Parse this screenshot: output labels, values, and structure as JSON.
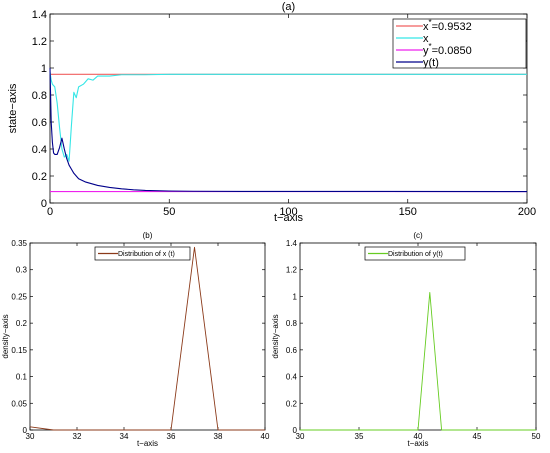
{
  "chart_data": [
    {
      "type": "line",
      "title": "(a)",
      "xlabel": "t−axis",
      "ylabel": "state−axis",
      "xlim": [
        0,
        200
      ],
      "ylim": [
        0,
        1.4
      ],
      "xticks": [
        "0",
        "50",
        "100",
        "150",
        "200"
      ],
      "yticks": [
        "0",
        "0.2",
        "0.4",
        "0.6",
        "0.8",
        "1",
        "1.2",
        "1.4"
      ],
      "legend_position": "top-right",
      "series": [
        {
          "name": "x*=0.9532",
          "label_base": "x",
          "label_sup": "*",
          "label_rest": "=0.9532",
          "color": "#f06060",
          "x": [
            0,
            200
          ],
          "y": [
            0.9532,
            0.9532
          ]
        },
        {
          "name": "x",
          "label_base": "x",
          "label_sup": "",
          "label_rest": "",
          "color": "#35e6e6",
          "x": [
            0,
            0.5,
            1,
            2,
            3,
            4,
            5,
            6,
            7,
            8,
            9,
            10,
            11,
            12,
            14,
            16,
            18,
            20,
            25,
            30,
            40,
            50,
            60,
            200
          ],
          "y": [
            0.97,
            0.91,
            0.88,
            0.86,
            0.74,
            0.56,
            0.4,
            0.34,
            0.36,
            0.31,
            0.58,
            0.82,
            0.78,
            0.86,
            0.88,
            0.92,
            0.91,
            0.94,
            0.94,
            0.95,
            0.95,
            0.953,
            0.953,
            0.953
          ]
        },
        {
          "name": "y*=0.0850",
          "label_base": "y",
          "label_sup": "*",
          "label_rest": "=0.0850",
          "color": "#ee22ee",
          "x": [
            0,
            200
          ],
          "y": [
            0.085,
            0.085
          ]
        },
        {
          "name": "y(t)",
          "label_base": "y(t)",
          "label_sup": "",
          "label_rest": "",
          "color": "#00008b",
          "x": [
            0,
            0.5,
            1,
            1.5,
            2,
            3,
            4,
            5,
            6,
            7,
            8,
            9,
            10,
            12,
            15,
            20,
            25,
            30,
            35,
            40,
            50,
            60,
            80,
            200
          ],
          "y": [
            1.0,
            0.6,
            0.45,
            0.37,
            0.36,
            0.36,
            0.41,
            0.48,
            0.4,
            0.33,
            0.28,
            0.25,
            0.22,
            0.18,
            0.155,
            0.13,
            0.115,
            0.105,
            0.098,
            0.093,
            0.089,
            0.087,
            0.086,
            0.085
          ]
        }
      ]
    },
    {
      "type": "line",
      "title": "(b)",
      "xlabel": "t−axis",
      "ylabel": "density−axis",
      "xlim": [
        30,
        40
      ],
      "ylim": [
        0,
        0.35
      ],
      "xticks": [
        "30",
        "32",
        "34",
        "36",
        "38",
        "40"
      ],
      "yticks": [
        "0",
        "0.05",
        "0.1",
        "0.15",
        "0.2",
        "0.25",
        "0.3",
        "0.35"
      ],
      "legend_position": "top",
      "series": [
        {
          "name": "Distribution of x (t)",
          "color": "#8b3a1a",
          "x": [
            30,
            31,
            32,
            33,
            34,
            35,
            36,
            37,
            38,
            39,
            40
          ],
          "y": [
            0.006,
            0,
            0,
            0,
            0,
            0,
            0,
            0.342,
            0,
            0,
            0
          ]
        }
      ]
    },
    {
      "type": "line",
      "title": "(c)",
      "xlabel": "t−axis",
      "ylabel": "density−axis",
      "xlim": [
        30,
        50
      ],
      "ylim": [
        0,
        1.4
      ],
      "xticks": [
        "30",
        "35",
        "40",
        "45",
        "50"
      ],
      "yticks": [
        "0",
        "0.2",
        "0.4",
        "0.6",
        "0.8",
        "1",
        "1.2",
        "1.4"
      ],
      "legend_position": "top",
      "series": [
        {
          "name": "Distribution of y(t)",
          "color": "#66cc22",
          "x": [
            30,
            31,
            32,
            33,
            34,
            35,
            36,
            37,
            38,
            39,
            40,
            41,
            42,
            43,
            44,
            45,
            46,
            47,
            48,
            49,
            50
          ],
          "y": [
            0,
            0,
            0,
            0,
            0,
            0,
            0,
            0,
            0,
            0,
            0,
            1.03,
            0,
            0,
            0,
            0,
            0,
            0,
            0,
            0,
            0
          ]
        }
      ]
    }
  ]
}
